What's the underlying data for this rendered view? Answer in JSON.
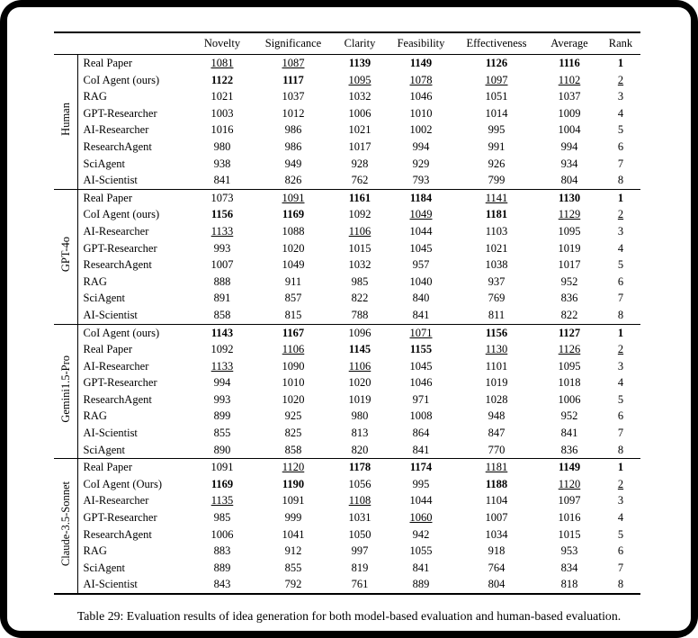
{
  "caption": "Table 29: Evaluation results of idea generation for both model-based evaluation and human-based evaluation.",
  "table": {
    "columns": [
      "Novelty",
      "Significance",
      "Clarity",
      "Feasibility",
      "Effectiveness",
      "Average",
      "Rank"
    ],
    "groups": [
      {
        "label": "Human",
        "rows": [
          {
            "method": "Real Paper",
            "cells": [
              {
                "v": "1081",
                "f": "u"
              },
              {
                "v": "1087",
                "f": "u"
              },
              {
                "v": "1139",
                "f": "b"
              },
              {
                "v": "1149",
                "f": "b"
              },
              {
                "v": "1126",
                "f": "b"
              },
              {
                "v": "1116",
                "f": "b"
              },
              {
                "v": "1",
                "f": "b"
              }
            ]
          },
          {
            "method": "CoI Agent (ours)",
            "cells": [
              {
                "v": "1122",
                "f": "b"
              },
              {
                "v": "1117",
                "f": "b"
              },
              {
                "v": "1095",
                "f": "u"
              },
              {
                "v": "1078",
                "f": "u"
              },
              {
                "v": "1097",
                "f": "u"
              },
              {
                "v": "1102",
                "f": "u"
              },
              {
                "v": "2",
                "f": "u"
              }
            ]
          },
          {
            "method": "RAG",
            "cells": [
              {
                "v": "1021"
              },
              {
                "v": "1037"
              },
              {
                "v": "1032"
              },
              {
                "v": "1046"
              },
              {
                "v": "1051"
              },
              {
                "v": "1037"
              },
              {
                "v": "3"
              }
            ]
          },
          {
            "method": "GPT-Researcher",
            "cells": [
              {
                "v": "1003"
              },
              {
                "v": "1012"
              },
              {
                "v": "1006"
              },
              {
                "v": "1010"
              },
              {
                "v": "1014"
              },
              {
                "v": "1009"
              },
              {
                "v": "4"
              }
            ]
          },
          {
            "method": "AI-Researcher",
            "cells": [
              {
                "v": "1016"
              },
              {
                "v": "986"
              },
              {
                "v": "1021"
              },
              {
                "v": "1002"
              },
              {
                "v": "995"
              },
              {
                "v": "1004"
              },
              {
                "v": "5"
              }
            ]
          },
          {
            "method": "ResearchAgent",
            "cells": [
              {
                "v": "980"
              },
              {
                "v": "986"
              },
              {
                "v": "1017"
              },
              {
                "v": "994"
              },
              {
                "v": "991"
              },
              {
                "v": "994"
              },
              {
                "v": "6"
              }
            ]
          },
          {
            "method": "SciAgent",
            "cells": [
              {
                "v": "938"
              },
              {
                "v": "949"
              },
              {
                "v": "928"
              },
              {
                "v": "929"
              },
              {
                "v": "926"
              },
              {
                "v": "934"
              },
              {
                "v": "7"
              }
            ]
          },
          {
            "method": "AI-Scientist",
            "cells": [
              {
                "v": "841"
              },
              {
                "v": "826"
              },
              {
                "v": "762"
              },
              {
                "v": "793"
              },
              {
                "v": "799"
              },
              {
                "v": "804"
              },
              {
                "v": "8"
              }
            ]
          }
        ]
      },
      {
        "label": "GPT-4o",
        "rows": [
          {
            "method": "Real Paper",
            "cells": [
              {
                "v": "1073"
              },
              {
                "v": "1091",
                "f": "u"
              },
              {
                "v": "1161",
                "f": "b"
              },
              {
                "v": "1184",
                "f": "b"
              },
              {
                "v": "1141",
                "f": "u"
              },
              {
                "v": "1130",
                "f": "b"
              },
              {
                "v": "1",
                "f": "b"
              }
            ]
          },
          {
            "method": "CoI Agent (ours)",
            "cells": [
              {
                "v": "1156",
                "f": "b"
              },
              {
                "v": "1169",
                "f": "b"
              },
              {
                "v": "1092"
              },
              {
                "v": "1049",
                "f": "u"
              },
              {
                "v": "1181",
                "f": "b"
              },
              {
                "v": "1129",
                "f": "u"
              },
              {
                "v": "2",
                "f": "u"
              }
            ]
          },
          {
            "method": "AI-Researcher",
            "cells": [
              {
                "v": "1133",
                "f": "u"
              },
              {
                "v": "1088"
              },
              {
                "v": "1106",
                "f": "u"
              },
              {
                "v": "1044"
              },
              {
                "v": "1103"
              },
              {
                "v": "1095"
              },
              {
                "v": "3"
              }
            ]
          },
          {
            "method": "GPT-Researcher",
            "cells": [
              {
                "v": "993"
              },
              {
                "v": "1020"
              },
              {
                "v": "1015"
              },
              {
                "v": "1045"
              },
              {
                "v": "1021"
              },
              {
                "v": "1019"
              },
              {
                "v": "4"
              }
            ]
          },
          {
            "method": "ResearchAgent",
            "cells": [
              {
                "v": "1007"
              },
              {
                "v": "1049"
              },
              {
                "v": "1032"
              },
              {
                "v": "957"
              },
              {
                "v": "1038"
              },
              {
                "v": "1017"
              },
              {
                "v": "5"
              }
            ]
          },
          {
            "method": "RAG",
            "cells": [
              {
                "v": "888"
              },
              {
                "v": "911"
              },
              {
                "v": "985"
              },
              {
                "v": "1040"
              },
              {
                "v": "937"
              },
              {
                "v": "952"
              },
              {
                "v": "6"
              }
            ]
          },
          {
            "method": "SciAgent",
            "cells": [
              {
                "v": "891"
              },
              {
                "v": "857"
              },
              {
                "v": "822"
              },
              {
                "v": "840"
              },
              {
                "v": "769"
              },
              {
                "v": "836"
              },
              {
                "v": "7"
              }
            ]
          },
          {
            "method": "AI-Scientist",
            "cells": [
              {
                "v": "858"
              },
              {
                "v": "815"
              },
              {
                "v": "788"
              },
              {
                "v": "841"
              },
              {
                "v": "811"
              },
              {
                "v": "822"
              },
              {
                "v": "8"
              }
            ]
          }
        ]
      },
      {
        "label": "Gemini1.5-Pro",
        "rows": [
          {
            "method": "CoI Agent (ours)",
            "cells": [
              {
                "v": "1143",
                "f": "b"
              },
              {
                "v": "1167",
                "f": "b"
              },
              {
                "v": "1096"
              },
              {
                "v": "1071",
                "f": "u"
              },
              {
                "v": "1156",
                "f": "b"
              },
              {
                "v": "1127",
                "f": "b"
              },
              {
                "v": "1",
                "f": "b"
              }
            ]
          },
          {
            "method": "Real Paper",
            "cells": [
              {
                "v": "1092"
              },
              {
                "v": "1106",
                "f": "u"
              },
              {
                "v": "1145",
                "f": "b"
              },
              {
                "v": "1155",
                "f": "b"
              },
              {
                "v": "1130",
                "f": "u"
              },
              {
                "v": "1126",
                "f": "u"
              },
              {
                "v": "2",
                "f": "u"
              }
            ]
          },
          {
            "method": "AI-Researcher",
            "cells": [
              {
                "v": "1133",
                "f": "u"
              },
              {
                "v": "1090"
              },
              {
                "v": "1106",
                "f": "u"
              },
              {
                "v": "1045"
              },
              {
                "v": "1101"
              },
              {
                "v": "1095"
              },
              {
                "v": "3"
              }
            ]
          },
          {
            "method": "GPT-Researcher",
            "cells": [
              {
                "v": "994"
              },
              {
                "v": "1010"
              },
              {
                "v": "1020"
              },
              {
                "v": "1046"
              },
              {
                "v": "1019"
              },
              {
                "v": "1018"
              },
              {
                "v": "4"
              }
            ]
          },
          {
            "method": "ResearchAgent",
            "cells": [
              {
                "v": "993"
              },
              {
                "v": "1020"
              },
              {
                "v": "1019"
              },
              {
                "v": "971"
              },
              {
                "v": "1028"
              },
              {
                "v": "1006"
              },
              {
                "v": "5"
              }
            ]
          },
          {
            "method": "RAG",
            "cells": [
              {
                "v": "899"
              },
              {
                "v": "925"
              },
              {
                "v": "980"
              },
              {
                "v": "1008"
              },
              {
                "v": "948"
              },
              {
                "v": "952"
              },
              {
                "v": "6"
              }
            ]
          },
          {
            "method": "AI-Scientist",
            "cells": [
              {
                "v": "855"
              },
              {
                "v": "825"
              },
              {
                "v": "813"
              },
              {
                "v": "864"
              },
              {
                "v": "847"
              },
              {
                "v": "841"
              },
              {
                "v": "7"
              }
            ]
          },
          {
            "method": "SciAgent",
            "cells": [
              {
                "v": "890"
              },
              {
                "v": "858"
              },
              {
                "v": "820"
              },
              {
                "v": "841"
              },
              {
                "v": "770"
              },
              {
                "v": "836"
              },
              {
                "v": "8"
              }
            ]
          }
        ]
      },
      {
        "label": "Claude-3.5-Sonnet",
        "rows": [
          {
            "method": "Real Paper",
            "cells": [
              {
                "v": "1091"
              },
              {
                "v": "1120",
                "f": "u"
              },
              {
                "v": "1178",
                "f": "b"
              },
              {
                "v": "1174",
                "f": "b"
              },
              {
                "v": "1181",
                "f": "u"
              },
              {
                "v": "1149",
                "f": "b"
              },
              {
                "v": "1",
                "f": "b"
              }
            ]
          },
          {
            "method": "CoI Agent (Ours)",
            "cells": [
              {
                "v": "1169",
                "f": "b"
              },
              {
                "v": "1190",
                "f": "b"
              },
              {
                "v": "1056"
              },
              {
                "v": "995"
              },
              {
                "v": "1188",
                "f": "b"
              },
              {
                "v": "1120",
                "f": "u"
              },
              {
                "v": "2",
                "f": "u"
              }
            ]
          },
          {
            "method": "AI-Researcher",
            "cells": [
              {
                "v": "1135",
                "f": "u"
              },
              {
                "v": "1091"
              },
              {
                "v": "1108",
                "f": "u"
              },
              {
                "v": "1044"
              },
              {
                "v": "1104"
              },
              {
                "v": "1097"
              },
              {
                "v": "3"
              }
            ]
          },
          {
            "method": "GPT-Researcher",
            "cells": [
              {
                "v": "985"
              },
              {
                "v": "999"
              },
              {
                "v": "1031"
              },
              {
                "v": "1060",
                "f": "u"
              },
              {
                "v": "1007"
              },
              {
                "v": "1016"
              },
              {
                "v": "4"
              }
            ]
          },
          {
            "method": "ResearchAgent",
            "cells": [
              {
                "v": "1006"
              },
              {
                "v": "1041"
              },
              {
                "v": "1050"
              },
              {
                "v": "942"
              },
              {
                "v": "1034"
              },
              {
                "v": "1015"
              },
              {
                "v": "5"
              }
            ]
          },
          {
            "method": "RAG",
            "cells": [
              {
                "v": "883"
              },
              {
                "v": "912"
              },
              {
                "v": "997"
              },
              {
                "v": "1055"
              },
              {
                "v": "918"
              },
              {
                "v": "953"
              },
              {
                "v": "6"
              }
            ]
          },
          {
            "method": "SciAgent",
            "cells": [
              {
                "v": "889"
              },
              {
                "v": "855"
              },
              {
                "v": "819"
              },
              {
                "v": "841"
              },
              {
                "v": "764"
              },
              {
                "v": "834"
              },
              {
                "v": "7"
              }
            ]
          },
          {
            "method": "AI-Scientist",
            "cells": [
              {
                "v": "843"
              },
              {
                "v": "792"
              },
              {
                "v": "761"
              },
              {
                "v": "889"
              },
              {
                "v": "804"
              },
              {
                "v": "818"
              },
              {
                "v": "8"
              }
            ]
          }
        ]
      }
    ]
  }
}
